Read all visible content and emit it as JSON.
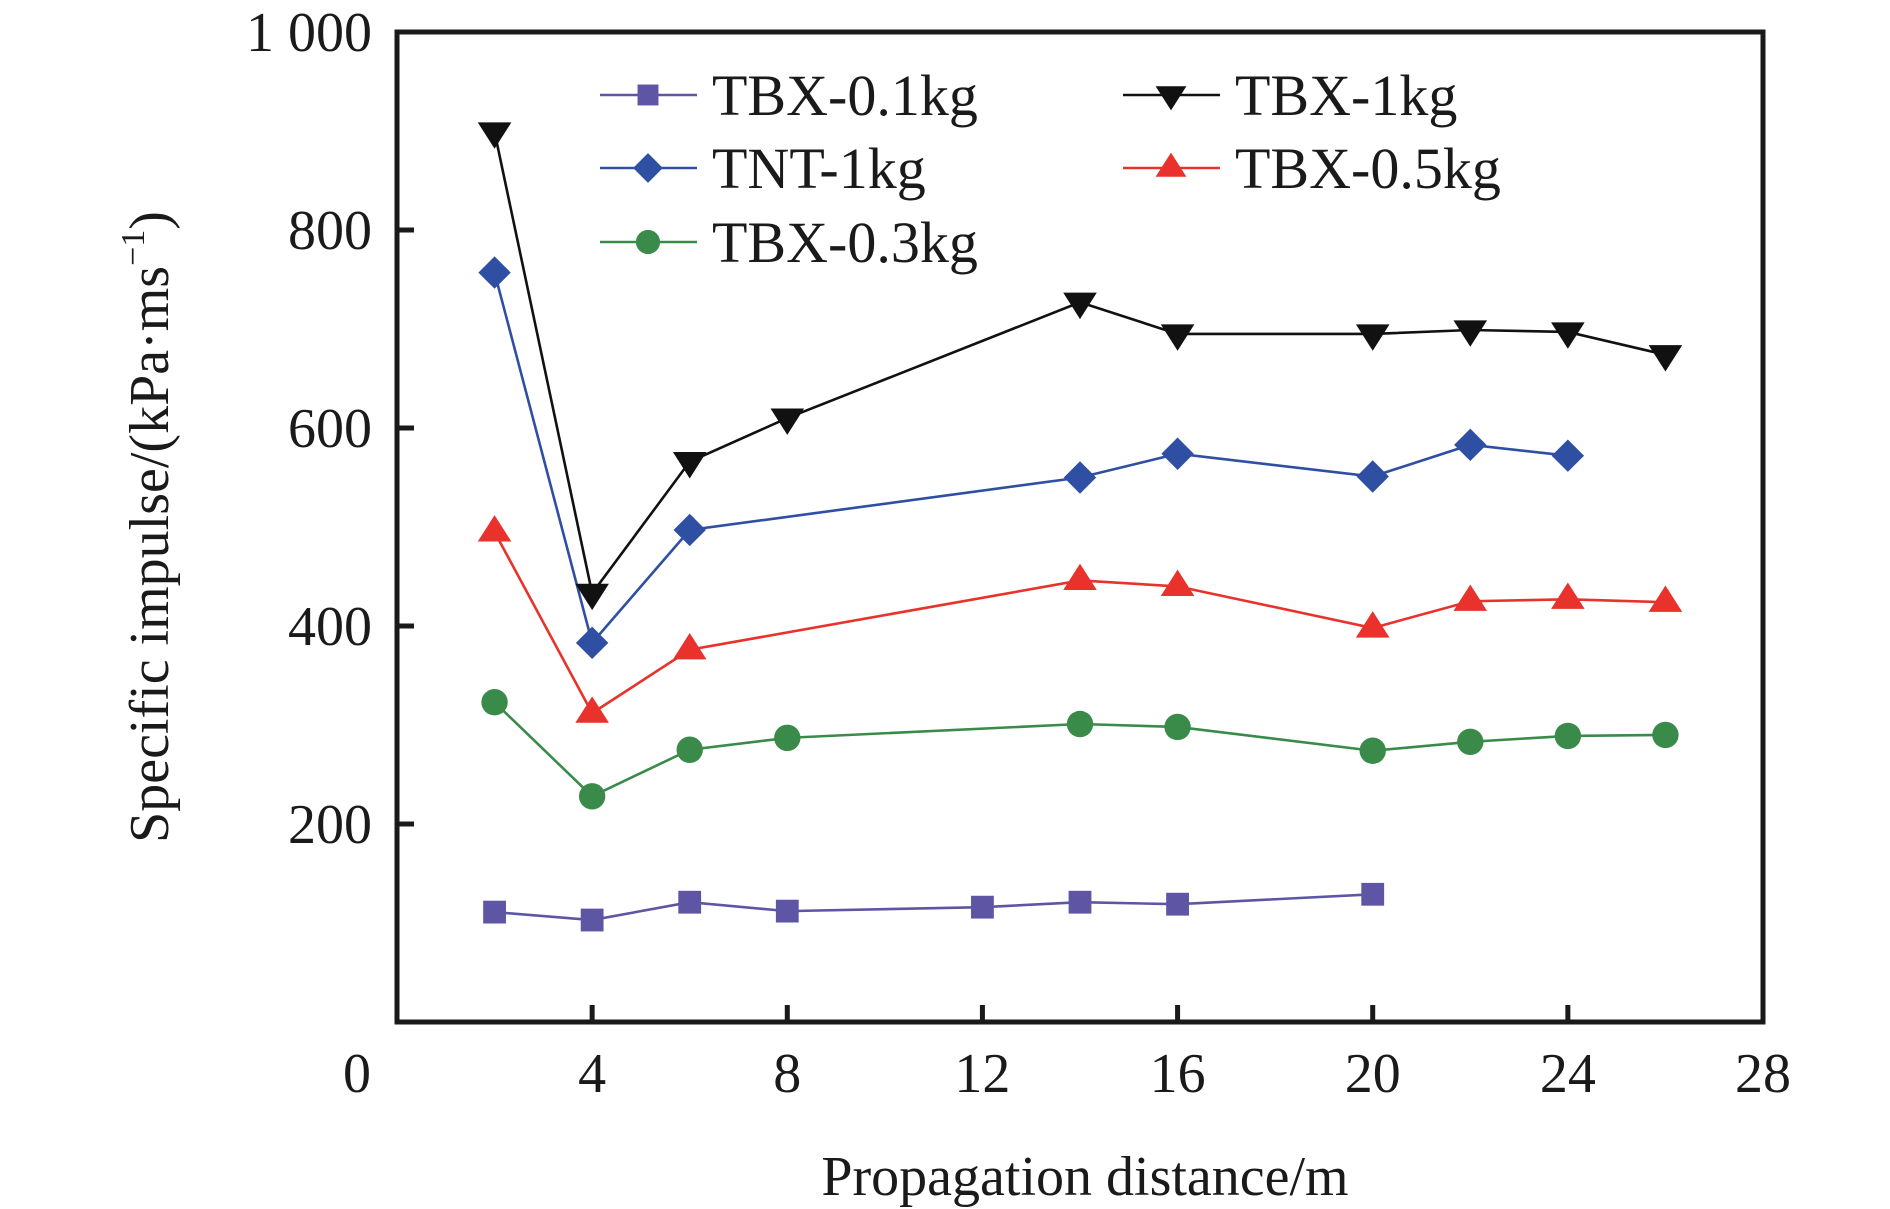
{
  "chart_data": {
    "type": "line",
    "title": "",
    "xlabel": "Propagation distance/m",
    "ylabel_parts": {
      "main": "Specific impulse/(kPa·ms",
      "sup": "−1",
      "close": ")"
    },
    "ylabel": "Specific impulse/(kPa·ms⁻¹)",
    "xlim": [
      0,
      28
    ],
    "ylim": [
      0,
      1000
    ],
    "xticks": [
      4,
      8,
      12,
      16,
      20,
      24,
      28
    ],
    "xtick_labels": [
      "4",
      "8",
      "12",
      "16",
      "20",
      "24",
      "28"
    ],
    "yticks": [
      200,
      400,
      600,
      800,
      1000
    ],
    "ytick_labels": [
      "200",
      "400",
      "600",
      "800",
      "1 000"
    ],
    "origin_label": "0",
    "grid": false,
    "legend_position": "top",
    "legend_columns": 2,
    "series": [
      {
        "name": "TBX-0.1kg",
        "marker": "square",
        "color": "#5e55a5",
        "x": [
          2,
          4,
          6,
          8,
          12,
          14,
          16,
          20
        ],
        "y": [
          111,
          103,
          121,
          112,
          116,
          121,
          119,
          129
        ]
      },
      {
        "name": "TNT-1kg",
        "marker": "diamond",
        "color": "#2f4fa2",
        "x": [
          2,
          4,
          6,
          14,
          16,
          20,
          22,
          24
        ],
        "y": [
          757,
          383,
          497,
          550,
          574,
          551,
          583,
          572
        ]
      },
      {
        "name": "TBX-0.3kg",
        "marker": "circle",
        "color": "#3a8a4a",
        "x": [
          2,
          4,
          6,
          8,
          14,
          16,
          20,
          22,
          24,
          26
        ],
        "y": [
          323,
          228,
          275,
          287,
          301,
          298,
          274,
          283,
          289,
          290
        ]
      },
      {
        "name": "TBX-1kg",
        "marker": "triangle-down",
        "color": "#111111",
        "x": [
          2,
          4,
          6,
          8,
          14,
          16,
          20,
          22,
          24,
          26
        ],
        "y": [
          899,
          433,
          566,
          610,
          727,
          695,
          695,
          699,
          697,
          674
        ]
      },
      {
        "name": "TBX-0.5kg",
        "marker": "triangle-up",
        "color": "#e8322b",
        "x": [
          2,
          4,
          6,
          14,
          16,
          20,
          22,
          24,
          26
        ],
        "y": [
          495,
          312,
          376,
          446,
          440,
          398,
          425,
          427,
          424
        ]
      }
    ],
    "legend_order": [
      [
        "TBX-0.1kg",
        "TBX-1kg"
      ],
      [
        "TNT-1kg",
        "TBX-0.5kg"
      ],
      [
        "TBX-0.3kg"
      ]
    ]
  }
}
